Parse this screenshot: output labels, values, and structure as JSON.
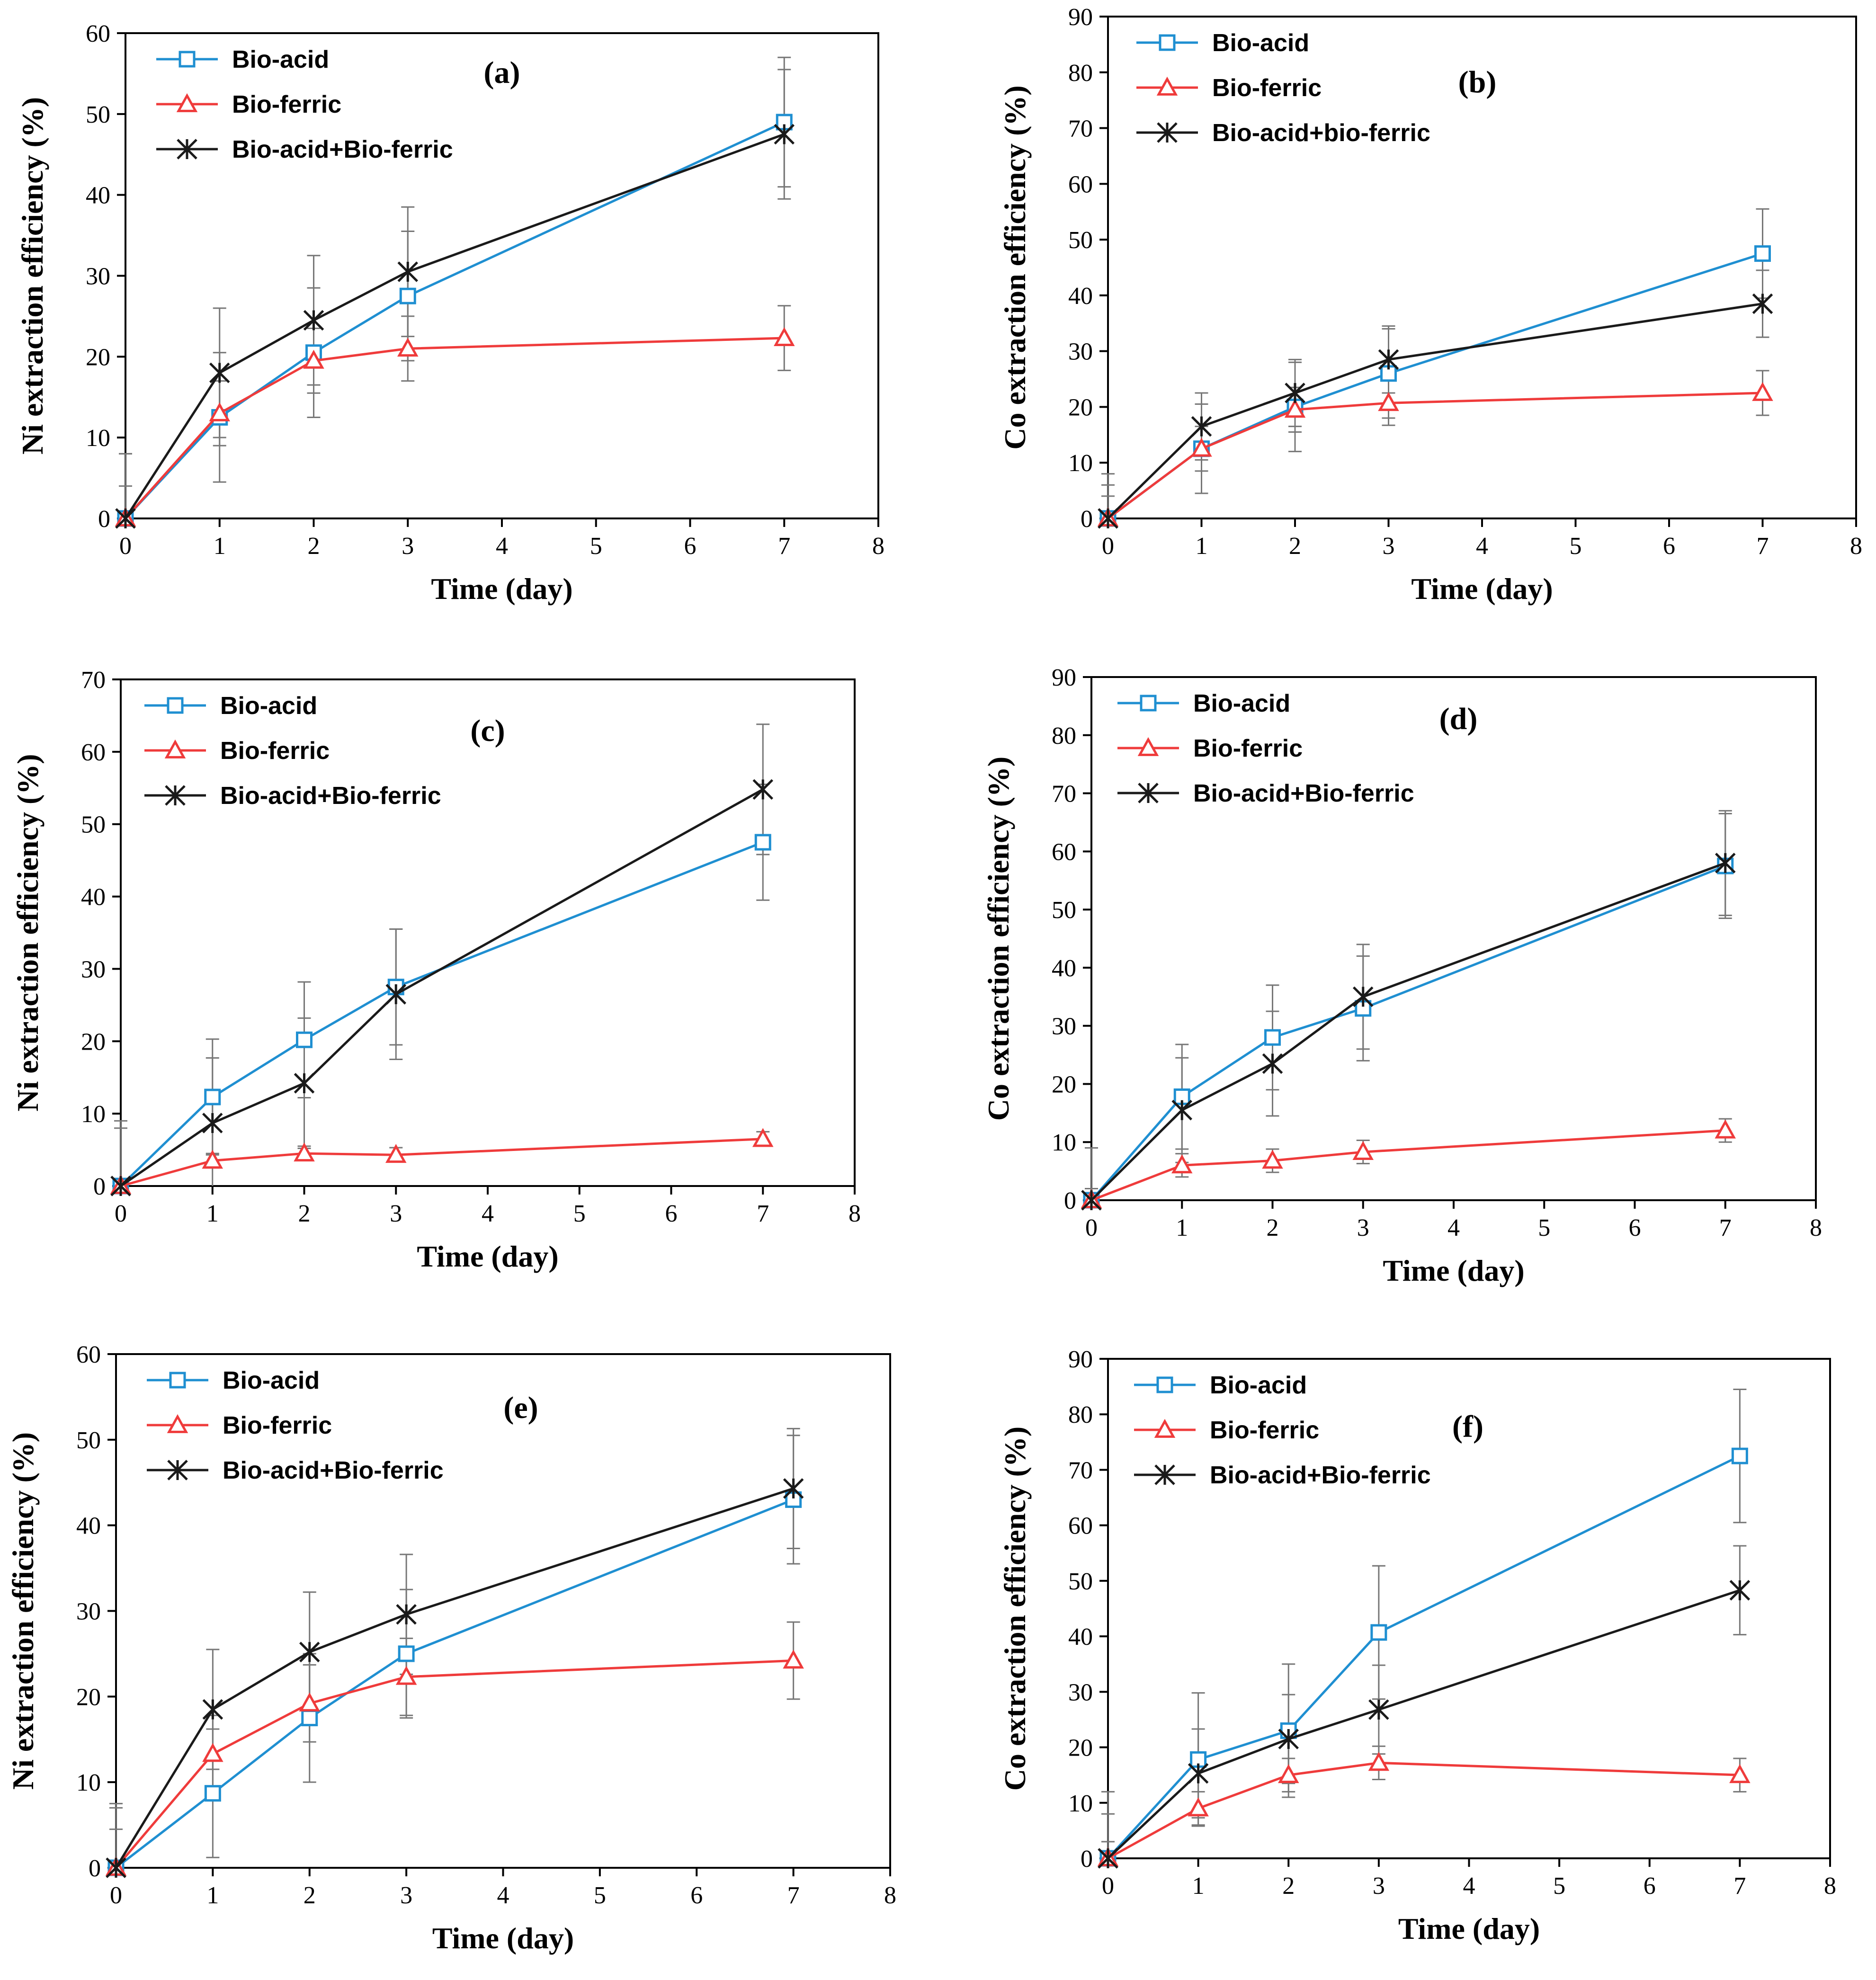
{
  "chart_data": [
    {
      "type": "line",
      "panel_label": "(a)",
      "xlabel": "Time (day)",
      "ylabel": "Ni extraction efficiency (%)",
      "xlim": [
        0,
        8
      ],
      "ylim": [
        0,
        60
      ],
      "xticks": [
        "0",
        "1",
        "2",
        "3",
        "4",
        "5",
        "6",
        "7",
        "8"
      ],
      "yticks": [
        "0",
        "10",
        "20",
        "30",
        "40",
        "50",
        "60"
      ],
      "x": [
        0,
        1,
        2,
        3,
        7
      ],
      "legend_position": "top-left",
      "grid": false,
      "series": [
        {
          "name": "Bio-acid",
          "values": [
            0,
            12.5,
            20.5,
            27.5,
            49
          ],
          "errors": [
            8,
            8,
            8,
            8,
            8
          ],
          "color": "#1f8fd1",
          "marker": "square"
        },
        {
          "name": "Bio-ferric",
          "values": [
            0,
            13,
            19.5,
            21,
            22.3
          ],
          "errors": [
            4,
            4,
            4,
            4,
            4
          ],
          "color": "#ef3b3b",
          "marker": "triangle"
        },
        {
          "name": "Bio-acid+Bio-ferric",
          "values": [
            0,
            18,
            24.5,
            30.5,
            47.5
          ],
          "errors": [
            8,
            8,
            8,
            8,
            8
          ],
          "color": "#1a1a1a",
          "marker": "asterisk"
        }
      ]
    },
    {
      "type": "line",
      "panel_label": "(b)",
      "xlabel": "Time (day)",
      "ylabel": "Co extraction efficiency (%)",
      "xlim": [
        0,
        8
      ],
      "ylim": [
        0,
        90
      ],
      "xticks": [
        "0",
        "1",
        "2",
        "3",
        "4",
        "5",
        "6",
        "7",
        "8"
      ],
      "yticks": [
        "0",
        "10",
        "20",
        "30",
        "40",
        "50",
        "60",
        "70",
        "80",
        "90"
      ],
      "x": [
        0,
        1,
        2,
        3,
        7
      ],
      "legend_position": "top-left",
      "grid": false,
      "series": [
        {
          "name": "Bio-acid",
          "values": [
            0,
            12.5,
            20,
            26,
            47.5
          ],
          "errors": [
            8,
            8,
            8,
            8,
            8
          ],
          "color": "#1f8fd1",
          "marker": "square"
        },
        {
          "name": "Bio-ferric",
          "values": [
            0,
            12.5,
            19.5,
            20.7,
            22.5
          ],
          "errors": [
            4,
            4,
            4,
            4,
            4
          ],
          "color": "#ef3b3b",
          "marker": "triangle"
        },
        {
          "name": "Bio-acid+bio-ferric",
          "values": [
            0,
            16.5,
            22.5,
            28.5,
            38.5
          ],
          "errors": [
            6,
            6,
            6,
            6,
            6
          ],
          "color": "#1a1a1a",
          "marker": "asterisk"
        }
      ]
    },
    {
      "type": "line",
      "panel_label": "(c)",
      "xlabel": "Time (day)",
      "ylabel": "Ni extraction efficiency (%)",
      "xlim": [
        0,
        8
      ],
      "ylim": [
        0,
        70
      ],
      "xticks": [
        "0",
        "1",
        "2",
        "3",
        "4",
        "5",
        "6",
        "7",
        "8"
      ],
      "yticks": [
        "0",
        "10",
        "20",
        "30",
        "40",
        "50",
        "60",
        "70"
      ],
      "x": [
        0,
        1,
        2,
        3,
        7
      ],
      "legend_position": "top-left",
      "grid": false,
      "series": [
        {
          "name": "Bio-acid",
          "values": [
            0,
            12.3,
            20.2,
            27.5,
            47.5
          ],
          "errors": [
            8,
            8,
            8,
            8,
            8
          ],
          "color": "#1f8fd1",
          "marker": "square"
        },
        {
          "name": "Bio-ferric",
          "values": [
            0,
            3.5,
            4.5,
            4.3,
            6.5
          ],
          "errors": [
            1,
            1,
            1,
            1,
            1
          ],
          "color": "#ef3b3b",
          "marker": "triangle"
        },
        {
          "name": "Bio-acid+Bio-ferric",
          "values": [
            0,
            8.7,
            14.2,
            26.5,
            54.8
          ],
          "errors": [
            9,
            9,
            9,
            9,
            9
          ],
          "color": "#1a1a1a",
          "marker": "asterisk"
        }
      ]
    },
    {
      "type": "line",
      "panel_label": "(d)",
      "xlabel": "Time (day)",
      "ylabel": "Co extraction efficiency (%)",
      "xlim": [
        0,
        8
      ],
      "ylim": [
        0,
        90
      ],
      "xticks": [
        "0",
        "1",
        "2",
        "3",
        "4",
        "5",
        "6",
        "7",
        "8"
      ],
      "yticks": [
        "0",
        "10",
        "20",
        "30",
        "40",
        "50",
        "60",
        "70",
        "80",
        "90"
      ],
      "x": [
        0,
        1,
        2,
        3,
        7
      ],
      "legend_position": "top-left",
      "grid": false,
      "series": [
        {
          "name": "Bio-acid",
          "values": [
            0,
            17.8,
            28,
            33,
            57.5
          ],
          "errors": [
            9,
            9,
            9,
            9,
            9
          ],
          "color": "#1f8fd1",
          "marker": "square"
        },
        {
          "name": "Bio-ferric",
          "values": [
            0,
            6,
            6.8,
            8.3,
            12
          ],
          "errors": [
            2,
            2,
            2,
            2,
            2
          ],
          "color": "#ef3b3b",
          "marker": "triangle"
        },
        {
          "name": "Bio-acid+Bio-ferric",
          "values": [
            0,
            15.5,
            23.5,
            35,
            58
          ],
          "errors": [
            9,
            9,
            9,
            9,
            9
          ],
          "color": "#1a1a1a",
          "marker": "asterisk"
        }
      ]
    },
    {
      "type": "line",
      "panel_label": "(e)",
      "xlabel": "Time (day)",
      "ylabel": "Ni extraction efficiency (%)",
      "xlim": [
        0,
        8
      ],
      "ylim": [
        0,
        60
      ],
      "xticks": [
        "0",
        "1",
        "2",
        "3",
        "4",
        "5",
        "6",
        "7",
        "8"
      ],
      "yticks": [
        "0",
        "10",
        "20",
        "30",
        "40",
        "50",
        "60"
      ],
      "x": [
        0,
        1,
        2,
        3,
        7
      ],
      "legend_position": "top-left",
      "grid": false,
      "series": [
        {
          "name": "Bio-acid",
          "values": [
            0,
            8.7,
            17.5,
            25,
            43
          ],
          "errors": [
            7.5,
            7.5,
            7.5,
            7.5,
            7.5
          ],
          "color": "#1f8fd1",
          "marker": "square"
        },
        {
          "name": "Bio-ferric",
          "values": [
            0,
            13.3,
            19.2,
            22.3,
            24.2
          ],
          "errors": [
            4.5,
            4.5,
            4.5,
            4.5,
            4.5
          ],
          "color": "#ef3b3b",
          "marker": "triangle"
        },
        {
          "name": "Bio-acid+Bio-ferric",
          "values": [
            0,
            18.5,
            25.2,
            29.6,
            44.3
          ],
          "errors": [
            7,
            7,
            7,
            7,
            7
          ],
          "color": "#1a1a1a",
          "marker": "asterisk"
        }
      ]
    },
    {
      "type": "line",
      "panel_label": "(f)",
      "xlabel": "Time (day)",
      "ylabel": "Co extraction efficiency (%)",
      "xlim": [
        0,
        8
      ],
      "ylim": [
        0,
        90
      ],
      "xticks": [
        "0",
        "1",
        "2",
        "3",
        "4",
        "5",
        "6",
        "7",
        "8"
      ],
      "yticks": [
        "0",
        "10",
        "20",
        "30",
        "40",
        "50",
        "60",
        "70",
        "80",
        "90"
      ],
      "x": [
        0,
        1,
        2,
        3,
        7
      ],
      "legend_position": "top-left",
      "grid": false,
      "series": [
        {
          "name": "Bio-acid",
          "values": [
            0,
            17.8,
            23,
            40.7,
            72.5
          ],
          "errors": [
            12,
            12,
            12,
            12,
            12
          ],
          "color": "#1f8fd1",
          "marker": "square"
        },
        {
          "name": "Bio-ferric",
          "values": [
            0,
            9,
            15,
            17.2,
            15
          ],
          "errors": [
            3,
            3,
            3,
            3,
            3
          ],
          "color": "#ef3b3b",
          "marker": "triangle"
        },
        {
          "name": "Bio-acid+Bio-ferric",
          "values": [
            0,
            15.3,
            21.5,
            26.8,
            48.3
          ],
          "errors": [
            8,
            8,
            8,
            8,
            8
          ],
          "color": "#1a1a1a",
          "marker": "asterisk"
        }
      ]
    }
  ]
}
